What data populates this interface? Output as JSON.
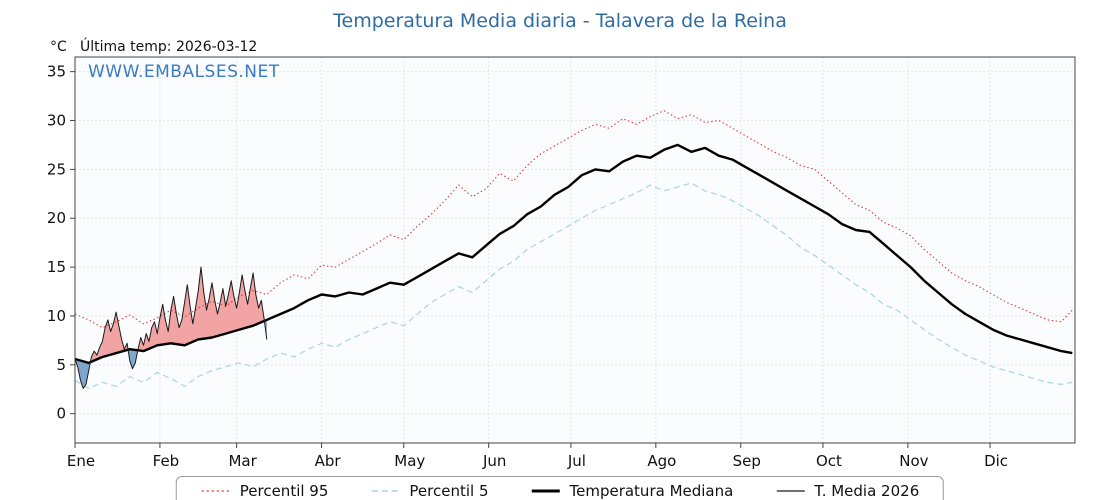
{
  "header": {
    "title": "Temperatura Media diaria - Talavera de la Reina",
    "unit": "°C",
    "last_temp": "Última temp: 2026-03-12",
    "watermark": "WWW.EMBALSES.NET"
  },
  "legend": {
    "items": [
      {
        "label": "Percentil 95"
      },
      {
        "label": "Percentil 5"
      },
      {
        "label": "Temperatura Mediana"
      },
      {
        "label": "T. Media 2026"
      }
    ]
  },
  "chart_data": {
    "type": "line",
    "title": "Temperatura Media diaria - Talavera de la Reina",
    "ylabel": "°C",
    "ylim": [
      -3,
      36.5
    ],
    "yticks": [
      0,
      5,
      10,
      15,
      20,
      25,
      30,
      35
    ],
    "x_months": [
      "Ene",
      "Feb",
      "Mar",
      "Abr",
      "May",
      "Jun",
      "Jul",
      "Ago",
      "Sep",
      "Oct",
      "Nov",
      "Dic"
    ],
    "month_start_days": [
      0,
      31,
      59,
      90,
      120,
      151,
      181,
      212,
      243,
      273,
      304,
      334
    ],
    "x_total_days": 365,
    "grid": true,
    "legend_position": "bottom",
    "colors": {
      "plot_bg": "#fafcfe",
      "grid": "#e2e6ea",
      "frame": "#444444",
      "title": "#2e6ca4",
      "watermark": "#3b7cc0",
      "fill_above": "#f2a3a3",
      "fill_below": "#7fa6cc"
    },
    "days_climatology": [
      0,
      5,
      10,
      15,
      20,
      25,
      30,
      35,
      40,
      45,
      50,
      55,
      60,
      65,
      70,
      75,
      80,
      85,
      90,
      95,
      100,
      105,
      110,
      115,
      120,
      125,
      130,
      135,
      140,
      145,
      150,
      155,
      160,
      165,
      170,
      175,
      180,
      185,
      190,
      195,
      200,
      205,
      210,
      215,
      220,
      225,
      230,
      235,
      240,
      245,
      250,
      255,
      260,
      265,
      270,
      275,
      280,
      285,
      290,
      295,
      300,
      305,
      310,
      315,
      320,
      325,
      330,
      335,
      340,
      345,
      350,
      355,
      360,
      364
    ],
    "days_2026": [
      0,
      1,
      2,
      3,
      4,
      5,
      6,
      7,
      8,
      9,
      10,
      11,
      12,
      13,
      14,
      15,
      16,
      17,
      18,
      19,
      20,
      21,
      22,
      23,
      24,
      25,
      26,
      27,
      28,
      29,
      30,
      31,
      32,
      33,
      34,
      35,
      36,
      37,
      38,
      39,
      40,
      41,
      42,
      43,
      44,
      45,
      46,
      47,
      48,
      49,
      50,
      51,
      52,
      53,
      54,
      55,
      56,
      57,
      58,
      59,
      60,
      61,
      62,
      63,
      64,
      65,
      66,
      67,
      68,
      69,
      70
    ],
    "series": [
      {
        "key": "p95",
        "name": "Percentil 95",
        "color": "#dd2a2a",
        "style": "dotted",
        "width": 1,
        "dash": "1.5 2.5",
        "days_ref": "days_climatology",
        "values": [
          10.2,
          9.6,
          8.8,
          9.4,
          10.1,
          9.2,
          9.8,
          10.6,
          9.9,
          10.8,
          11.5,
          11.0,
          12.0,
          12.6,
          12.2,
          13.4,
          14.2,
          13.8,
          15.2,
          15.0,
          15.8,
          16.6,
          17.4,
          18.3,
          17.8,
          19.2,
          20.4,
          21.8,
          23.4,
          22.2,
          23.0,
          24.6,
          23.8,
          25.4,
          26.6,
          27.4,
          28.2,
          29.0,
          29.6,
          29.2,
          30.2,
          29.6,
          30.4,
          31.0,
          30.2,
          30.6,
          29.8,
          30.0,
          29.2,
          28.4,
          27.6,
          26.8,
          26.2,
          25.4,
          25.0,
          23.8,
          22.6,
          21.4,
          20.8,
          19.6,
          19.0,
          18.2,
          16.8,
          15.6,
          14.4,
          13.6,
          13.0,
          12.2,
          11.4,
          10.8,
          10.2,
          9.6,
          9.4,
          10.6
        ]
      },
      {
        "key": "p5",
        "name": "Percentil 5",
        "color": "#a8d4e6",
        "style": "dashed",
        "width": 1.2,
        "dash": "6 4",
        "days_ref": "days_climatology",
        "values": [
          3.4,
          2.6,
          3.2,
          2.8,
          3.8,
          3.2,
          4.2,
          3.6,
          2.8,
          3.8,
          4.4,
          4.8,
          5.2,
          4.8,
          5.6,
          6.2,
          5.8,
          6.6,
          7.2,
          6.8,
          7.6,
          8.2,
          8.8,
          9.4,
          9.0,
          10.2,
          11.4,
          12.2,
          13.0,
          12.4,
          13.6,
          14.8,
          15.6,
          16.8,
          17.6,
          18.4,
          19.2,
          20.0,
          20.8,
          21.4,
          22.0,
          22.6,
          23.4,
          22.8,
          23.2,
          23.6,
          22.8,
          22.4,
          21.8,
          21.0,
          20.2,
          19.2,
          18.2,
          17.0,
          16.2,
          15.2,
          14.2,
          13.2,
          12.4,
          11.2,
          10.6,
          9.6,
          8.6,
          7.6,
          6.8,
          6.0,
          5.4,
          4.8,
          4.4,
          4.0,
          3.6,
          3.2,
          3.0,
          3.2
        ]
      },
      {
        "key": "median",
        "name": "Temperatura Mediana",
        "color": "#000000",
        "style": "solid",
        "width": 2.4,
        "dash": "",
        "days_ref": "days_climatology",
        "values": [
          5.6,
          5.2,
          5.8,
          6.2,
          6.6,
          6.4,
          7.0,
          7.2,
          7.0,
          7.6,
          7.8,
          8.2,
          8.6,
          9.0,
          9.6,
          10.2,
          10.8,
          11.6,
          12.2,
          12.0,
          12.4,
          12.2,
          12.8,
          13.4,
          13.2,
          14.0,
          14.8,
          15.6,
          16.4,
          16.0,
          17.2,
          18.4,
          19.2,
          20.4,
          21.2,
          22.4,
          23.2,
          24.4,
          25.0,
          24.8,
          25.8,
          26.4,
          26.2,
          27.0,
          27.5,
          26.8,
          27.2,
          26.4,
          26.0,
          25.2,
          24.4,
          23.6,
          22.8,
          22.0,
          21.2,
          20.4,
          19.4,
          18.8,
          18.6,
          17.4,
          16.2,
          15.0,
          13.6,
          12.4,
          11.2,
          10.2,
          9.4,
          8.6,
          8.0,
          7.6,
          7.2,
          6.8,
          6.4,
          6.2
        ]
      },
      {
        "key": "t2026",
        "name": "T. Media 2026",
        "color": "#1a1a1a",
        "style": "solid",
        "width": 1,
        "dash": "",
        "days_ref": "days_2026",
        "values": [
          5.6,
          4.8,
          3.4,
          2.6,
          3.0,
          4.4,
          5.8,
          6.4,
          6.0,
          6.8,
          7.4,
          8.8,
          9.6,
          8.4,
          9.2,
          10.4,
          9.0,
          7.6,
          6.6,
          7.2,
          5.4,
          4.6,
          5.2,
          6.6,
          7.8,
          7.0,
          8.2,
          7.4,
          8.8,
          9.4,
          8.2,
          9.8,
          11.2,
          9.6,
          8.4,
          10.6,
          12.0,
          10.2,
          8.8,
          9.6,
          11.4,
          13.2,
          11.0,
          9.2,
          10.8,
          12.6,
          15.0,
          12.4,
          10.6,
          11.8,
          13.4,
          11.6,
          10.2,
          11.4,
          12.8,
          11.0,
          12.2,
          13.6,
          12.0,
          10.8,
          12.4,
          14.2,
          12.6,
          11.2,
          12.8,
          14.4,
          12.2,
          10.8,
          11.6,
          9.8,
          7.6
        ]
      }
    ]
  }
}
